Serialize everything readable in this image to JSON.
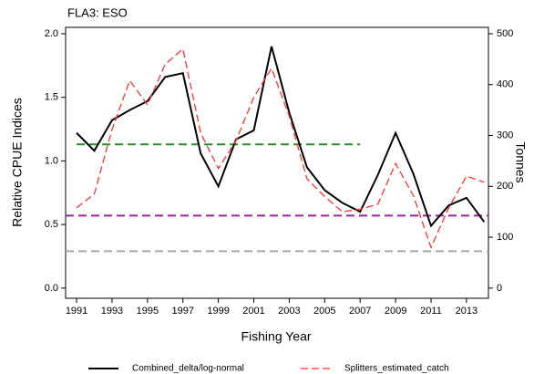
{
  "chart_data": {
    "type": "line",
    "title": "FLA3: ESO",
    "x_label": "Fishing Year",
    "y_label": "Relative CPUE Indices",
    "y2_label": "Tonnes",
    "x": [
      1991,
      1992,
      1993,
      1994,
      1995,
      1996,
      1997,
      1998,
      1999,
      2000,
      2001,
      2002,
      2003,
      2004,
      2005,
      2006,
      2007,
      2008,
      2009,
      2010,
      2011,
      2012,
      2013,
      2014
    ],
    "series": [
      {
        "name": "Combined_delta/log-normal",
        "color": "#000000",
        "style": "solid",
        "values": [
          1.22,
          1.08,
          1.32,
          1.4,
          1.47,
          1.66,
          1.69,
          1.06,
          0.8,
          1.17,
          1.24,
          1.9,
          1.38,
          0.95,
          0.77,
          0.67,
          0.6,
          0.89,
          1.22,
          0.9,
          0.49,
          0.65,
          0.71,
          0.52
        ]
      },
      {
        "name": "Splitters_estimated_catch",
        "color": "#ff3333",
        "style": "dashed",
        "axis": "y2",
        "values": [
          158,
          185,
          312,
          408,
          360,
          440,
          470,
          305,
          235,
          290,
          375,
          432,
          338,
          215,
          180,
          150,
          155,
          165,
          245,
          182,
          80,
          158,
          220,
          208
        ]
      }
    ],
    "reference_lines": [
      {
        "value": 1.13,
        "color": "#2e8b2e",
        "x": [
          1991,
          2007
        ]
      },
      {
        "value": 0.57,
        "color": "#a020a0"
      },
      {
        "value": 0.29,
        "color": "#a8a8a8"
      }
    ],
    "xlim": [
      1990.38,
      2014.24
    ],
    "xticks": [
      1991,
      1993,
      1995,
      1997,
      1999,
      2001,
      2003,
      2005,
      2007,
      2009,
      2011,
      2013
    ],
    "ylim": [
      -0.08,
      2.05
    ],
    "yticks": [
      {
        "value": 0,
        "label": "0.0"
      },
      {
        "value": 0.5,
        "label": "0.5"
      },
      {
        "value": 1,
        "label": "1.0"
      },
      {
        "value": 1.5,
        "label": "1.5"
      },
      {
        "value": 2,
        "label": "2.0"
      }
    ],
    "y2lim": [
      -20,
      512.5
    ],
    "y2ticks": [
      0,
      100,
      200,
      300,
      400,
      500
    ]
  }
}
